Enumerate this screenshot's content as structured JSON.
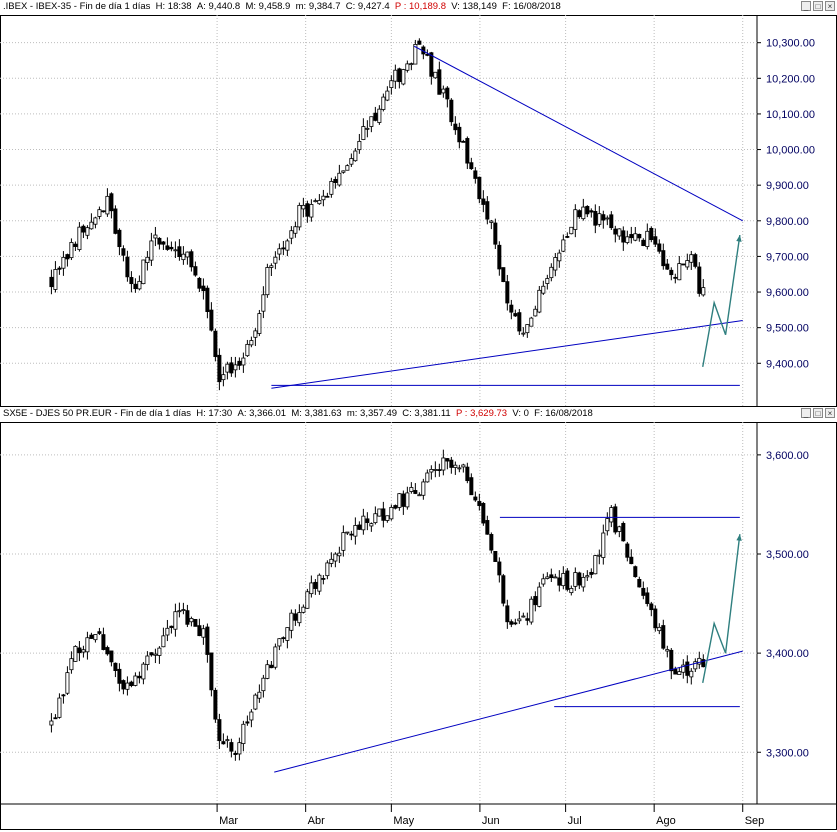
{
  "chart_data": [
    {
      "type": "candlestick",
      "header": {
        "symbol": ".IBEX",
        "name": "IBEX-35",
        "period": "Fin de día 1 días",
        "H": "H: 18:38",
        "A": "A: 9,440.8",
        "M": "M: 9,458.9",
        "m": "m: 9,384.7",
        "C": "C: 9,427.4",
        "P": "P : 10,189.8",
        "V": "V: 138,149",
        "F": "F: 16/08/2018"
      },
      "ylim": [
        9325,
        10330
      ],
      "yticks": [
        "10,300.00",
        "10,200.00",
        "10,100.00",
        "10,000.00",
        "9,900.00",
        "9,800.00",
        "9,700.00",
        "9,600.00",
        "9,500.00",
        "9,400.00"
      ],
      "ytick_values": [
        10300,
        10200,
        10100,
        10000,
        9900,
        9800,
        9700,
        9600,
        9500,
        9400
      ],
      "grid": true,
      "anchors": [
        [
          0,
          9640
        ],
        [
          8,
          9790
        ],
        [
          14,
          9850
        ],
        [
          20,
          9600
        ],
        [
          26,
          9750
        ],
        [
          34,
          9690
        ],
        [
          38,
          9610
        ],
        [
          42,
          9345
        ],
        [
          46,
          9400
        ],
        [
          50,
          9460
        ],
        [
          54,
          9660
        ],
        [
          62,
          9820
        ],
        [
          70,
          9890
        ],
        [
          78,
          10050
        ],
        [
          86,
          10200
        ],
        [
          92,
          10290
        ],
        [
          98,
          10150
        ],
        [
          104,
          9980
        ],
        [
          110,
          9790
        ],
        [
          114,
          9560
        ],
        [
          118,
          9470
        ],
        [
          122,
          9580
        ],
        [
          126,
          9710
        ],
        [
          132,
          9830
        ],
        [
          138,
          9800
        ],
        [
          144,
          9740
        ],
        [
          150,
          9760
        ],
        [
          154,
          9640
        ],
        [
          160,
          9680
        ],
        [
          166,
          9500
        ],
        [
          172,
          9660
        ],
        [
          178,
          9870
        ],
        [
          182,
          9930
        ],
        [
          188,
          9780
        ],
        [
          194,
          9770
        ],
        [
          200,
          9760
        ],
        [
          206,
          9690
        ],
        [
          212,
          9820
        ],
        [
          218,
          9900
        ],
        [
          224,
          9790
        ],
        [
          230,
          9830
        ],
        [
          236,
          9760
        ],
        [
          242,
          9670
        ],
        [
          248,
          9590
        ],
        [
          252,
          9550
        ],
        [
          256,
          9427
        ]
      ],
      "trendlines": [
        {
          "x1": "2018-05-09",
          "y1": 10290,
          "x2": "2018-09-01",
          "y2": 9800
        },
        {
          "x1": "2018-03-20",
          "y1": 9330,
          "x2": "2018-09-01",
          "y2": 9520
        },
        {
          "x1": "2018-03-20",
          "y1": 9338,
          "x2": "2018-08-31",
          "y2": 9338
        }
      ],
      "projection": [
        [
          "2018-08-18",
          9390
        ],
        [
          "2018-08-22",
          9570
        ],
        [
          "2018-08-26",
          9480
        ],
        [
          "2018-08-31",
          9760
        ]
      ]
    },
    {
      "type": "candlestick",
      "header": {
        "symbol": "SX5E",
        "name": "DJES 50 PR.EUR",
        "period": "Fin de día 1 días",
        "H": "H: 17:30",
        "A": "A: 3,366.01",
        "M": "M: 3,381.63",
        "m": "m: 3,357.49",
        "C": "C: 3,381.11",
        "P": "P : 3,629.73",
        "V": "V: 0",
        "F": "F: 16/08/2018"
      },
      "ylim": [
        3270,
        3615
      ],
      "yticks": [
        "3,600.00",
        "3,500.00",
        "3,400.00",
        "3,300.00"
      ],
      "ytick_values": [
        3600,
        3500,
        3400,
        3300
      ],
      "grid": true,
      "anchors": [
        [
          0,
          3330
        ],
        [
          6,
          3400
        ],
        [
          12,
          3420
        ],
        [
          18,
          3360
        ],
        [
          24,
          3390
        ],
        [
          32,
          3440
        ],
        [
          38,
          3420
        ],
        [
          42,
          3310
        ],
        [
          46,
          3300
        ],
        [
          52,
          3360
        ],
        [
          58,
          3420
        ],
        [
          66,
          3470
        ],
        [
          74,
          3520
        ],
        [
          82,
          3540
        ],
        [
          90,
          3560
        ],
        [
          98,
          3590
        ],
        [
          104,
          3580
        ],
        [
          110,
          3510
        ],
        [
          114,
          3440
        ],
        [
          118,
          3430
        ],
        [
          124,
          3480
        ],
        [
          130,
          3470
        ],
        [
          136,
          3490
        ],
        [
          140,
          3540
        ],
        [
          144,
          3500
        ],
        [
          150,
          3440
        ],
        [
          156,
          3380
        ],
        [
          162,
          3390
        ],
        [
          168,
          3360
        ],
        [
          174,
          3390
        ],
        [
          180,
          3450
        ],
        [
          186,
          3470
        ],
        [
          192,
          3440
        ],
        [
          198,
          3450
        ],
        [
          204,
          3480
        ],
        [
          210,
          3490
        ],
        [
          214,
          3520
        ],
        [
          218,
          3530
        ],
        [
          222,
          3500
        ],
        [
          228,
          3490
        ],
        [
          232,
          3450
        ],
        [
          236,
          3410
        ],
        [
          240,
          3390
        ],
        [
          244,
          3360
        ],
        [
          248,
          3381
        ]
      ],
      "trendlines": [
        {
          "x1": "2018-03-21",
          "y1": 3280,
          "x2": "2018-09-01",
          "y2": 3402
        },
        {
          "x1": "2018-06-08",
          "y1": 3537,
          "x2": "2018-08-31",
          "y2": 3537
        },
        {
          "x1": "2018-06-27",
          "y1": 3346,
          "x2": "2018-08-31",
          "y2": 3346
        }
      ],
      "projection": [
        [
          "2018-08-18",
          3370
        ],
        [
          "2018-08-22",
          3430
        ],
        [
          "2018-08-26",
          3400
        ],
        [
          "2018-08-31",
          3520
        ]
      ]
    }
  ],
  "xaxis": {
    "labels": [
      "Mar",
      "Abr",
      "May",
      "Jun",
      "Jul",
      "Ago",
      "Sep"
    ],
    "dates": [
      "2018-03-01",
      "2018-04-01",
      "2018-05-01",
      "2018-06-01",
      "2018-07-01",
      "2018-08-01",
      "2018-09-01"
    ],
    "start": "2017-12-15",
    "end": "2018-09-06"
  },
  "colors": {
    "axis_text": "#000060",
    "trendline": "#0000c0",
    "projection": "#2f7f7f",
    "grid": "#bdbdbd",
    "candle": "#000000",
    "price_p": "#d00000"
  }
}
